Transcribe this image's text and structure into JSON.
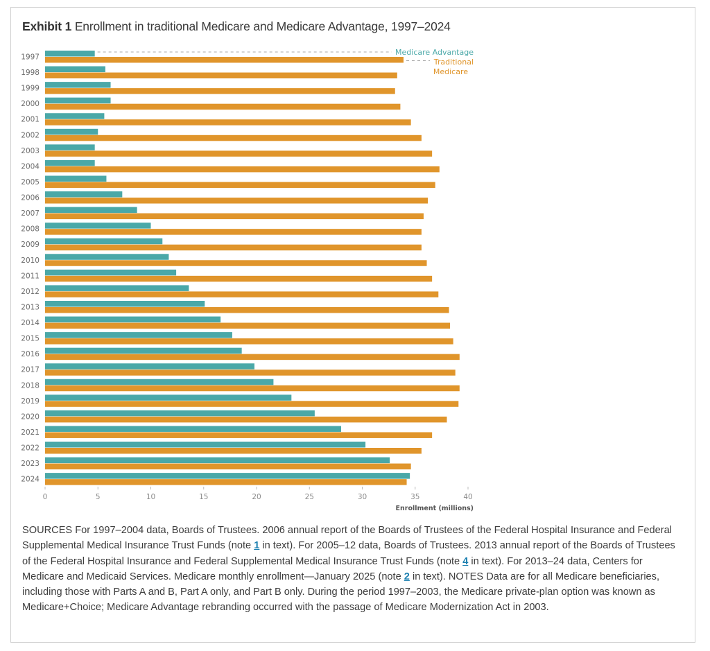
{
  "exhibit": {
    "label": "Exhibit 1",
    "title": "Enrollment in traditional Medicare and Medicare Advantage, 1997–2024"
  },
  "colors": {
    "medicare_advantage": "#4aa8a8",
    "traditional_medicare": "#e0952b"
  },
  "chart_data": {
    "type": "bar",
    "orientation": "horizontal",
    "title": "Enrollment in traditional Medicare and Medicare Advantage, 1997–2024",
    "xlabel": "Enrollment (millions)",
    "ylabel": "",
    "xlim": [
      0,
      40
    ],
    "xticks": [
      "0",
      "5",
      "10",
      "15",
      "20",
      "25",
      "30",
      "35",
      "40"
    ],
    "grid": false,
    "legend": {
      "placement": "top-right",
      "entries": [
        "Medicare Advantage",
        "Traditional Medicare"
      ],
      "lines": [
        [
          "Medicare Advantage"
        ],
        [
          "Traditional",
          "Medicare"
        ]
      ]
    },
    "categories": [
      "1997",
      "1998",
      "1999",
      "2000",
      "2001",
      "2002",
      "2003",
      "2004",
      "2005",
      "2006",
      "2007",
      "2008",
      "2009",
      "2010",
      "2011",
      "2012",
      "2013",
      "2014",
      "2015",
      "2016",
      "2017",
      "2018",
      "2019",
      "2020",
      "2021",
      "2022",
      "2023",
      "2024"
    ],
    "series": [
      {
        "name": "Medicare Advantage",
        "values": [
          4.7,
          5.7,
          6.2,
          6.2,
          5.6,
          5.0,
          4.7,
          4.7,
          5.8,
          7.3,
          8.7,
          10.0,
          11.1,
          11.7,
          12.4,
          13.6,
          15.1,
          16.6,
          17.7,
          18.6,
          19.8,
          21.6,
          23.3,
          25.5,
          28.0,
          30.3,
          32.6,
          34.5
        ]
      },
      {
        "name": "Traditional Medicare",
        "values": [
          33.9,
          33.3,
          33.1,
          33.6,
          34.6,
          35.6,
          36.6,
          37.3,
          36.9,
          36.2,
          35.8,
          35.6,
          35.6,
          36.1,
          36.6,
          37.2,
          38.2,
          38.3,
          38.6,
          39.2,
          38.8,
          39.2,
          39.1,
          38.0,
          36.6,
          35.6,
          34.6,
          34.2
        ]
      }
    ]
  },
  "notes": {
    "segments": [
      {
        "text": "SOURCES For 1997–2004 data, Boards of Trustees. 2006 annual report of the Boards of Trustees of the Federal Hospital Insurance and Federal Supplemental Medical Insurance Trust Funds (note "
      },
      {
        "link": "1"
      },
      {
        "text": " in text). For 2005–12 data, Boards of Trustees. 2013 annual report of the Boards of Trustees of the Federal Hospital Insurance and Federal Supplemental Medical Insurance Trust Funds (note "
      },
      {
        "link": "4"
      },
      {
        "text": " in text). For 2013–24 data, Centers for Medicare and Medicaid Services. Medicare monthly enrollment—January 2025 (note "
      },
      {
        "link": "2"
      },
      {
        "text": " in text). NOTES Data are for all Medicare beneficiaries, including those with Parts A and B, Part A only, and Part B only. During the period 1997–2003, the Medicare private-plan option was known as Medicare+Choice; Medicare Advantage rebranding occurred with the passage of Medicare Modernization Act in 2003."
      }
    ]
  }
}
